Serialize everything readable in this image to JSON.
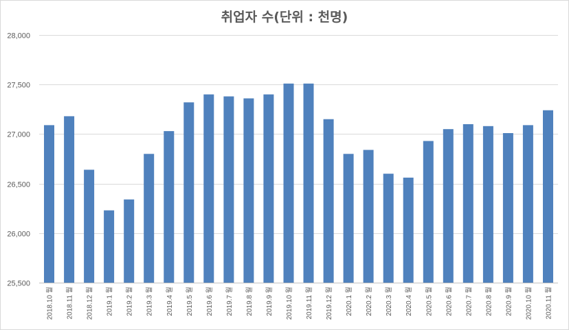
{
  "chart_data": {
    "type": "bar",
    "title": "취업자 수(단위 : 천명)",
    "categories": [
      "2018.10 월",
      "2018.11 월",
      "2018.12 월",
      "2019.1 월",
      "2019.2 월",
      "2019.3 월",
      "2019.4 월",
      "2019.5 월",
      "2019.6 월",
      "2019.7 월",
      "2019.8 월",
      "2019.9 월",
      "2019.10 월",
      "2019.11 월",
      "2019.12 월",
      "2020.1 월",
      "2020.2 월",
      "2020.3 월",
      "2020.4 월",
      "2020.5 월",
      "2020.6 월",
      "2020.7 월",
      "2020.8 월",
      "2020.9 월",
      "2020.10 월",
      "2020.11 월"
    ],
    "values": [
      27090,
      27180,
      26640,
      26230,
      26340,
      26800,
      27030,
      27320,
      27400,
      27380,
      27360,
      27400,
      27510,
      27510,
      27150,
      26800,
      26840,
      26600,
      26560,
      26930,
      27050,
      27100,
      27080,
      27010,
      27090,
      27240
    ],
    "ylim": [
      25500,
      28000
    ],
    "yticks": [
      25500,
      26000,
      26500,
      27000,
      27500,
      28000
    ],
    "ytick_labels": [
      "25,500",
      "26,000",
      "26,500",
      "27,000",
      "27,500",
      "28,000"
    ],
    "grid": true,
    "xlabel": "",
    "ylabel": "",
    "colors": {
      "bar": "#4f81bd",
      "grid": "#d9d9d9",
      "axis": "#bfbfbf"
    }
  }
}
